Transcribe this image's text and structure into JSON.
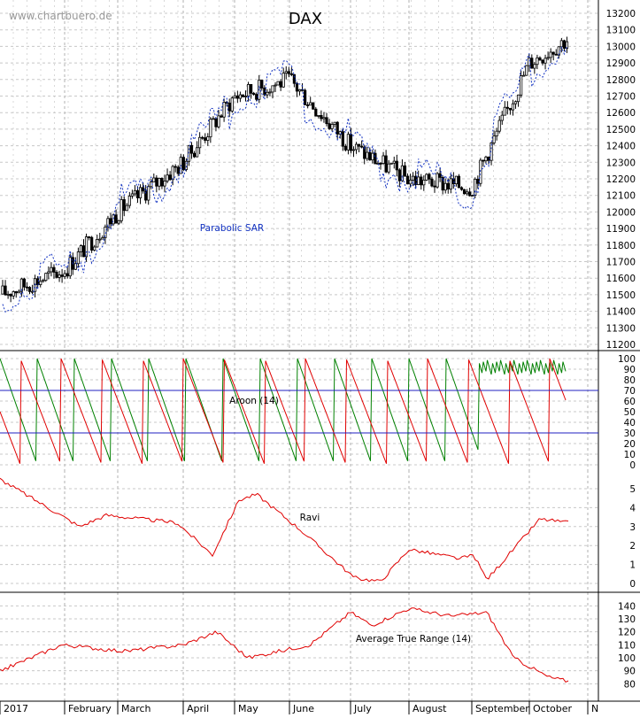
{
  "watermark": "www.chartbuero.de",
  "chart_data": [
    {
      "type": "candlestick",
      "title": "DAX",
      "y_range": [
        11200,
        13200
      ],
      "y_ticks": [
        11200,
        11300,
        11400,
        11500,
        11600,
        11700,
        11800,
        11900,
        12000,
        12100,
        12200,
        12300,
        12400,
        12500,
        12600,
        12700,
        12800,
        12900,
        13000,
        13100,
        13200
      ],
      "grid": true,
      "month_labels": [
        "2017",
        "February",
        "March",
        "April",
        "May",
        "June",
        "July",
        "August",
        "September",
        "October",
        "N"
      ],
      "annotation": "Parabolic SAR",
      "approx_close_by_month_start": [
        {
          "x": "2017-01",
          "value": 11500
        },
        {
          "x": "2017-02",
          "value": 11650
        },
        {
          "x": "2017-03",
          "value": 12000
        },
        {
          "x": "2017-04",
          "value": 12300
        },
        {
          "x": "2017-05",
          "value": 12700
        },
        {
          "x": "2017-06",
          "value": 12800
        },
        {
          "x": "2017-07",
          "value": 12400
        },
        {
          "x": "2017-08",
          "value": 12200
        },
        {
          "x": "2017-09",
          "value": 12150
        },
        {
          "x": "2017-10",
          "value": 12900
        },
        {
          "x": "2017-10-end",
          "value": 13050
        }
      ]
    },
    {
      "type": "line",
      "title": "Aroon (14)",
      "y_range": [
        0,
        100
      ],
      "y_ticks": [
        0,
        10,
        20,
        30,
        40,
        50,
        60,
        70,
        80,
        90,
        100
      ],
      "reference_lines": [
        30,
        70
      ],
      "series": [
        {
          "color": "#008000"
        },
        {
          "color": "#e00000"
        }
      ]
    },
    {
      "type": "line",
      "title": "Ravi",
      "y_range": [
        0,
        5
      ],
      "y_ticks": [
        0,
        1,
        2,
        3,
        4,
        5
      ],
      "series": [
        {
          "color": "#e00000",
          "x": [
            "Jan",
            "Feb",
            "Mar",
            "Apr",
            "Apr-mid",
            "May",
            "May-mid",
            "Jun",
            "Jul",
            "Jul-mid",
            "Aug",
            "Aug-end",
            "Sep",
            "Sep-mid",
            "Oct",
            "Oct-end"
          ],
          "values": [
            5.5,
            3.0,
            3.6,
            3.2,
            1.5,
            4.4,
            4.7,
            2.8,
            0.3,
            0.1,
            1.8,
            1.3,
            1.5,
            0.2,
            3.4,
            3.2
          ]
        }
      ]
    },
    {
      "type": "line",
      "title": "Average True Range (14)",
      "y_range": [
        70,
        145
      ],
      "y_ticks": [
        80,
        90,
        100,
        110,
        120,
        130,
        140
      ],
      "series": [
        {
          "color": "#e00000",
          "x": [
            "Jan",
            "Feb",
            "Mar",
            "Apr",
            "Apr-mid",
            "May",
            "Jun",
            "Jul",
            "Jul-mid",
            "Aug",
            "Aug-end",
            "Sep",
            "Sep-mid",
            "Oct",
            "Oct-end"
          ],
          "values": [
            90,
            110,
            105,
            110,
            120,
            100,
            110,
            135,
            125,
            138,
            132,
            135,
            100,
            85,
            82
          ]
        }
      ]
    }
  ]
}
